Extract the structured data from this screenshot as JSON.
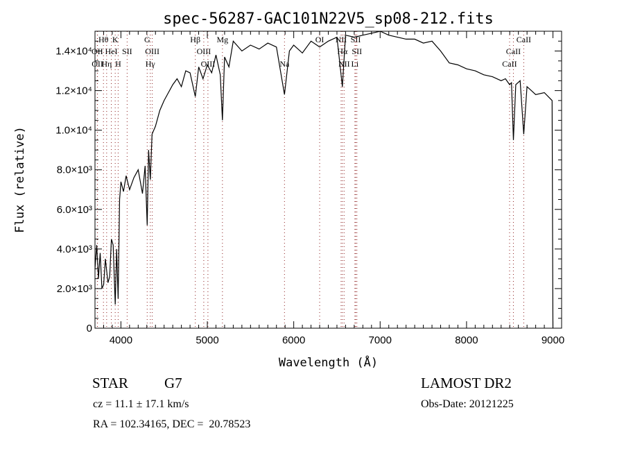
{
  "chart_data": {
    "type": "line",
    "title": "spec-56287-GAC101N22V5_sp08-212.fits",
    "xlabel": "Wavelength (Å)",
    "ylabel": "Flux (relative)",
    "xlim": [
      3700,
      9100
    ],
    "ylim": [
      0,
      15000
    ],
    "xticks": [
      4000,
      5000,
      6000,
      7000,
      8000,
      9000
    ],
    "xtick_labels": [
      "4000",
      "5000",
      "6000",
      "7000",
      "8000",
      "9000"
    ],
    "yticks": [
      0,
      2000,
      4000,
      6000,
      8000,
      10000,
      12000,
      14000
    ],
    "ytick_labels": [
      "0",
      "2.0×10³",
      "4.0×10³",
      "6.0×10³",
      "8.0×10³",
      "1.0×10⁴",
      "1.2×10⁴",
      "1.4×10⁴"
    ],
    "series": [
      {
        "name": "spectrum",
        "x": [
          3700,
          3720,
          3740,
          3760,
          3780,
          3800,
          3820,
          3850,
          3870,
          3890,
          3910,
          3934,
          3950,
          3968,
          3985,
          4000,
          4030,
          4060,
          4100,
          4150,
          4200,
          4250,
          4280,
          4304,
          4320,
          4340,
          4360,
          4400,
          4450,
          4500,
          4550,
          4600,
          4650,
          4700,
          4750,
          4800,
          4861,
          4900,
          4950,
          5000,
          5050,
          5100,
          5150,
          5175,
          5200,
          5250,
          5300,
          5400,
          5500,
          5600,
          5700,
          5800,
          5893,
          5950,
          6000,
          6100,
          6200,
          6300,
          6400,
          6500,
          6563,
          6600,
          6700,
          6800,
          6900,
          7000,
          7100,
          7200,
          7300,
          7400,
          7500,
          7600,
          7700,
          7800,
          7900,
          8000,
          8100,
          8200,
          8300,
          8400,
          8450,
          8498,
          8520,
          8542,
          8570,
          8620,
          8662,
          8700,
          8750,
          8800,
          8900,
          8990,
          9000
        ],
        "y": [
          3000,
          4200,
          2500,
          3800,
          2000,
          2200,
          3500,
          2300,
          2600,
          4500,
          4200,
          1200,
          4000,
          1500,
          6500,
          7400,
          6900,
          7700,
          7000,
          7600,
          8000,
          6800,
          8200,
          5200,
          9000,
          7500,
          9800,
          10200,
          11000,
          11500,
          11900,
          12300,
          12600,
          12200,
          13000,
          12900,
          11700,
          13200,
          12600,
          13300,
          12900,
          13800,
          12800,
          10500,
          13700,
          13200,
          14500,
          14000,
          14300,
          14100,
          14400,
          14200,
          11800,
          14000,
          14300,
          13900,
          14500,
          14200,
          14500,
          14700,
          12200,
          14800,
          14700,
          14800,
          14900,
          15000,
          14800,
          14700,
          14600,
          14600,
          14400,
          14500,
          14000,
          13400,
          13300,
          13100,
          13000,
          12800,
          12700,
          12500,
          12600,
          12300,
          12400,
          9500,
          12300,
          12500,
          9800,
          12200,
          12000,
          11800,
          11900,
          11500,
          0
        ]
      }
    ],
    "line_markers": [
      {
        "label": "Hθ",
        "wavelength": 3798,
        "row": 1
      },
      {
        "label": "K",
        "wavelength": 3934,
        "row": 1
      },
      {
        "label": "G",
        "wavelength": 4304,
        "row": 1
      },
      {
        "label": "Hβ",
        "wavelength": 4861,
        "row": 1
      },
      {
        "label": "Mg",
        "wavelength": 5175,
        "row": 1
      },
      {
        "label": "OI",
        "wavelength": 6300,
        "row": 1
      },
      {
        "label": "NII",
        "wavelength": 6548,
        "row": 1
      },
      {
        "label": "SII",
        "wavelength": 6717,
        "row": 1
      },
      {
        "label": "CaII",
        "wavelength": 8662,
        "row": 1
      },
      {
        "label": "OII",
        "wavelength": 3727,
        "row": 2
      },
      {
        "label": "HeI",
        "wavelength": 3889,
        "row": 2
      },
      {
        "label": "SII",
        "wavelength": 4072,
        "row": 2
      },
      {
        "label": "OIII",
        "wavelength": 4363,
        "row": 2
      },
      {
        "label": "OIII",
        "wavelength": 4959,
        "row": 2
      },
      {
        "label": "Hα",
        "wavelength": 6563,
        "row": 2
      },
      {
        "label": "SII",
        "wavelength": 6731,
        "row": 2
      },
      {
        "label": "CaII",
        "wavelength": 8542,
        "row": 2
      },
      {
        "label": "OII",
        "wavelength": 3729,
        "row": 3
      },
      {
        "label": "Hη",
        "wavelength": 3835,
        "row": 3
      },
      {
        "label": "H",
        "wavelength": 3968,
        "row": 3
      },
      {
        "label": "Hγ",
        "wavelength": 4340,
        "row": 3
      },
      {
        "label": "OIII",
        "wavelength": 5007,
        "row": 3
      },
      {
        "label": "Na",
        "wavelength": 5893,
        "row": 3
      },
      {
        "label": "NII",
        "wavelength": 6583,
        "row": 3
      },
      {
        "label": "Li",
        "wavelength": 6708,
        "row": 3
      },
      {
        "label": "CaII",
        "wavelength": 8498,
        "row": 3
      }
    ],
    "grid": false,
    "colors": {
      "line": "#000000",
      "marker": "#8b1a1a",
      "axis": "#000000"
    }
  },
  "info": {
    "object_class": "STAR",
    "subclass": "G7",
    "redshift": "cz = 11.1 ± 17.1 km/s",
    "coords": "RA = 102.34165, DEC =  20.78523",
    "survey": "LAMOST DR2",
    "obs_date": "Obs-Date: 20121225"
  }
}
